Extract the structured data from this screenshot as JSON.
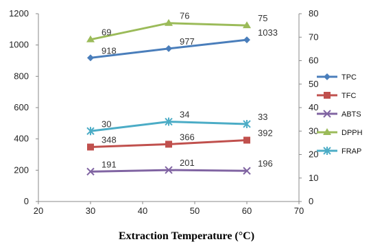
{
  "chart_data": {
    "type": "line",
    "xlabel": "Extraction Temperature (°C)",
    "xlim": [
      20,
      70
    ],
    "xticks": [
      20,
      30,
      40,
      50,
      60,
      70
    ],
    "ylim_left": [
      0,
      1200
    ],
    "yticks_left": [
      0,
      200,
      400,
      600,
      800,
      1000,
      1200
    ],
    "ylim_right": [
      0,
      80
    ],
    "yticks_right": [
      0,
      10,
      20,
      30,
      40,
      50,
      60,
      70,
      80
    ],
    "grid": false,
    "legend_position": "right",
    "x": [
      30,
      45,
      60
    ],
    "series": [
      {
        "name": "TPC",
        "axis": "left",
        "values": [
          918,
          977,
          1033
        ],
        "labels": [
          "918",
          "977",
          "1033"
        ],
        "color": "#4a7ebb",
        "marker": "diamond"
      },
      {
        "name": "TFC",
        "axis": "left",
        "values": [
          348,
          366,
          392
        ],
        "labels": [
          "348",
          "366",
          "392"
        ],
        "color": "#c0504d",
        "marker": "square"
      },
      {
        "name": "ABTS",
        "axis": "left",
        "values": [
          191,
          201,
          196
        ],
        "labels": [
          "191",
          "201",
          "196"
        ],
        "color": "#8064a2",
        "marker": "x"
      },
      {
        "name": "DPPH",
        "axis": "right",
        "values": [
          69,
          76,
          75
        ],
        "labels": [
          "69",
          "76",
          "75"
        ],
        "color": "#9bbb59",
        "marker": "triangle"
      },
      {
        "name": "FRAP",
        "axis": "right",
        "values": [
          30,
          34,
          33
        ],
        "labels": [
          "30",
          "34",
          "33"
        ],
        "color": "#4bacc6",
        "marker": "star"
      }
    ]
  }
}
